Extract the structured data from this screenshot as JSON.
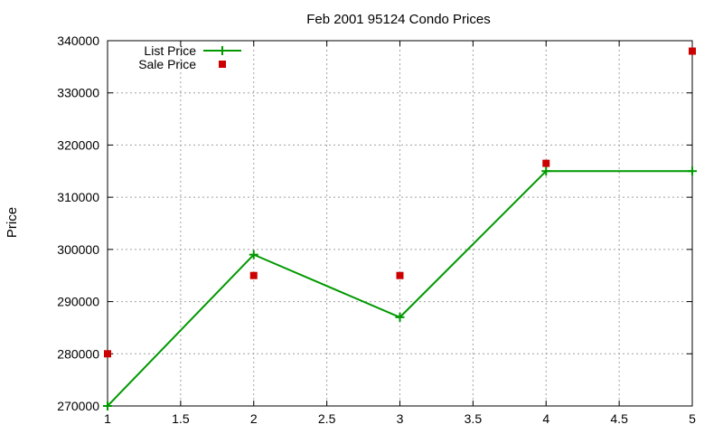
{
  "chart_data": {
    "type": "line",
    "title": "Feb 2001 95124 Condo Prices",
    "xlabel": "",
    "ylabel": "Price",
    "xlim": [
      1,
      5
    ],
    "ylim": [
      270000,
      340000
    ],
    "x_ticks": [
      1,
      1.5,
      2,
      2.5,
      3,
      3.5,
      4,
      4.5,
      5
    ],
    "y_ticks": [
      270000,
      280000,
      290000,
      300000,
      310000,
      320000,
      330000,
      340000
    ],
    "grid": true,
    "legend_position": "top-left",
    "series": [
      {
        "name": "List Price",
        "style": "lines+points",
        "marker": "plus",
        "color": "#009900",
        "x": [
          1,
          2,
          3,
          4,
          5
        ],
        "y": [
          270000,
          299000,
          287000,
          315000,
          315000
        ]
      },
      {
        "name": "Sale Price",
        "style": "points",
        "marker": "square",
        "color": "#cc0000",
        "x": [
          1,
          2,
          3,
          4,
          5
        ],
        "y": [
          280000,
          295000,
          295000,
          316500,
          338000
        ]
      }
    ]
  }
}
